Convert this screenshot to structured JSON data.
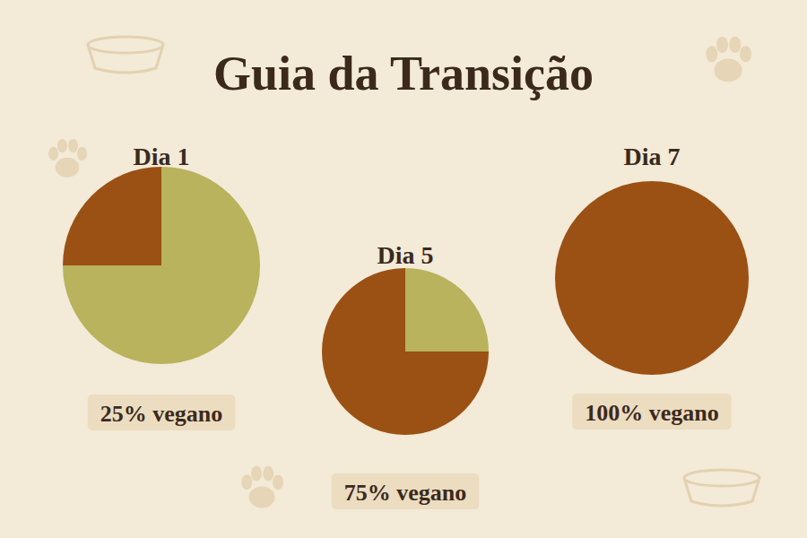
{
  "title": "Guia da Transição",
  "chart_data": [
    {
      "type": "pie",
      "title": "Dia 1",
      "values": [
        25,
        75
      ],
      "value_labels": [
        "25% vegano",
        null
      ],
      "colors": [
        "#9b5113",
        "#b8b35c"
      ],
      "data_labels": true
    },
    {
      "type": "pie",
      "title": "Dia 5",
      "values": [
        75,
        25
      ],
      "value_labels": [
        "75% vegano",
        null
      ],
      "colors": [
        "#9b5113",
        "#b8b35c"
      ],
      "data_labels": true
    },
    {
      "type": "pie",
      "title": "Dia 7",
      "values": [
        100
      ],
      "value_labels": [
        "100% vegano"
      ],
      "colors": [
        "#9b5113"
      ],
      "data_labels": true
    }
  ]
}
